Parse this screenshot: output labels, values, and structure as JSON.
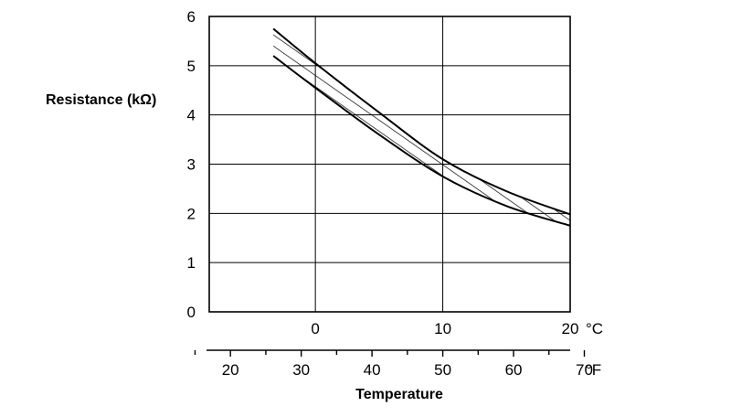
{
  "chart_data": {
    "type": "area",
    "title": "",
    "ylabel": "Resistance (kΩ)",
    "xlabel": "Temperature",
    "ylim": [
      0,
      6
    ],
    "xlim_c": [
      -8.33,
      20
    ],
    "grid": true,
    "y_ticks": [
      "0",
      "1",
      "2",
      "3",
      "4",
      "5",
      "6"
    ],
    "x_ticks_c": [
      "0",
      "10",
      "20"
    ],
    "x_ticks_f": [
      "20",
      "30",
      "40",
      "50",
      "60",
      "70"
    ],
    "unit_c": "°C",
    "unit_f": "°F",
    "x_c": [
      -3.3,
      0,
      5,
      10,
      15,
      20
    ],
    "upper": [
      5.75,
      5.05,
      4.05,
      3.1,
      2.45,
      1.98
    ],
    "lower": [
      5.2,
      4.55,
      3.6,
      2.75,
      2.15,
      1.75
    ]
  }
}
